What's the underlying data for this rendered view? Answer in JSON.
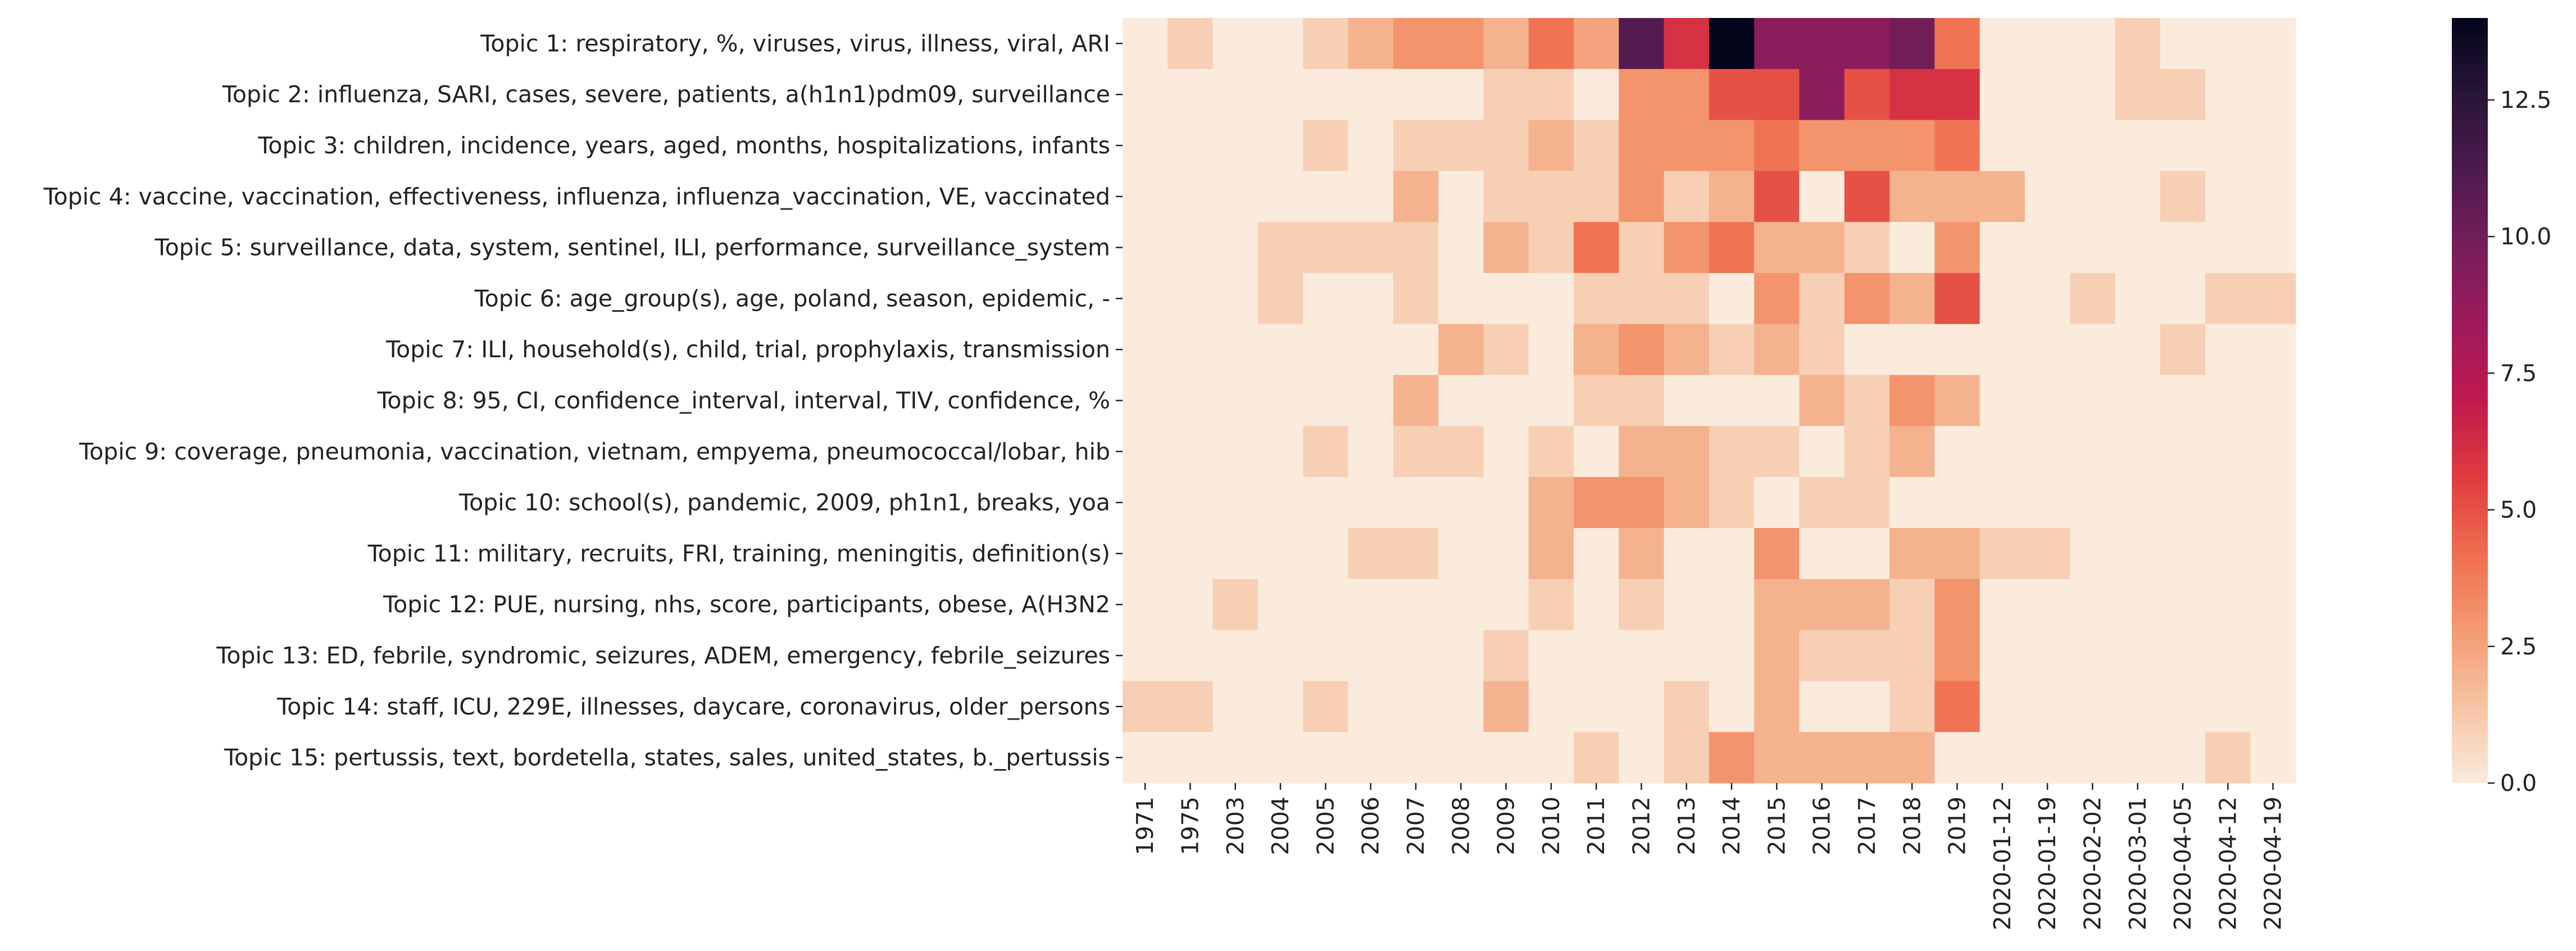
{
  "chart_data": {
    "type": "heatmap",
    "title": "",
    "xlabel": "",
    "ylabel": "",
    "x": [
      "1971",
      "1975",
      "2003",
      "2004",
      "2005",
      "2006",
      "2007",
      "2008",
      "2009",
      "2010",
      "2011",
      "2012",
      "2013",
      "2014",
      "2015",
      "2016",
      "2017",
      "2018",
      "2019",
      "2020-01-12",
      "2020-01-19",
      "2020-02-02",
      "2020-03-01",
      "2020-04-05",
      "2020-04-12",
      "2020-04-19"
    ],
    "y": [
      "Topic 1: respiratory, %, viruses, virus, illness, viral, ARI",
      "Topic 2: influenza, SARI, cases, severe, patients, a(h1n1)pdm09, surveillance",
      "Topic 3: children, incidence, years, aged, months, hospitalizations, infants",
      "Topic 4: vaccine, vaccination, effectiveness, influenza, influenza_vaccination, VE, vaccinated",
      "Topic 5: surveillance, data, system, sentinel, ILI, performance, surveillance_system",
      "Topic 6: age_group(s), age, poland, season, epidemic, -",
      "Topic 7: ILI, household(s), child, trial, prophylaxis, transmission",
      "Topic 8: 95, CI, confidence_interval, interval, TIV, confidence, %",
      "Topic 9: coverage, pneumonia, vaccination, vietnam, empyema, pneumococcal/lobar, hib",
      "Topic 10: school(s), pandemic, 2009, ph1n1, breaks, yoa",
      "Topic 11: military, recruits, FRI, training, meningitis, definition(s)",
      "Topic 12: PUE, nursing, nhs, score, participants, obese, A(H3N2",
      "Topic 13: ED, febrile, syndromic, seizures, ADEM, emergency, febrile_seizures",
      "Topic 14: staff, ICU, 229E, illnesses, daycare, coronavirus, older_persons",
      "Topic 15: pertussis, text, bordetella, states, sales, united_states, b._pertussis"
    ],
    "values": [
      [
        0,
        1,
        0,
        0,
        1,
        2,
        3,
        3,
        2,
        4,
        2.5,
        11,
        6,
        14,
        9,
        9,
        9,
        10,
        4,
        0,
        0,
        0,
        1,
        0,
        0,
        0
      ],
      [
        0,
        0,
        0,
        0,
        0,
        0,
        0,
        0,
        1,
        1,
        0,
        3,
        3,
        5,
        5,
        9,
        5,
        6,
        6,
        0,
        0,
        0,
        1,
        1,
        0,
        0
      ],
      [
        0,
        0,
        0,
        0,
        1,
        0,
        1,
        1,
        1,
        2,
        1,
        3,
        3,
        3,
        4,
        3,
        3,
        3,
        4,
        0,
        0,
        0,
        0,
        0,
        0,
        0
      ],
      [
        0,
        0,
        0,
        0,
        0,
        0,
        2,
        0,
        1,
        1,
        1,
        3,
        1,
        2,
        5,
        0,
        5,
        2,
        2,
        2,
        0,
        0,
        0,
        1,
        0,
        0
      ],
      [
        0,
        0,
        0,
        1,
        1,
        1,
        1,
        0,
        2,
        1,
        4,
        1,
        3,
        4,
        2,
        2,
        1,
        0,
        3,
        0,
        0,
        0,
        0,
        0,
        0,
        0
      ],
      [
        0,
        0,
        0,
        1,
        0,
        0,
        1,
        0,
        0,
        0,
        1,
        1,
        1,
        0,
        3,
        1,
        3,
        2,
        5,
        0,
        0,
        1,
        0,
        0,
        1,
        1
      ],
      [
        0,
        0,
        0,
        0,
        0,
        0,
        0,
        2,
        1,
        0,
        2,
        3,
        2,
        1,
        2,
        1,
        0,
        0,
        0,
        0,
        0,
        0,
        0,
        1,
        0,
        0
      ],
      [
        0,
        0,
        0,
        0,
        0,
        0,
        2,
        0,
        0,
        0,
        1,
        1,
        0,
        0,
        0,
        2,
        1,
        3,
        2,
        0,
        0,
        0,
        0,
        0,
        0,
        0
      ],
      [
        0,
        0,
        0,
        0,
        1,
        0,
        1,
        1,
        0,
        1,
        0,
        2,
        2,
        1,
        1,
        0,
        1,
        2,
        0,
        0,
        0,
        0,
        0,
        0,
        0,
        0
      ],
      [
        0,
        0,
        0,
        0,
        0,
        0,
        0,
        0,
        0,
        2,
        3,
        3,
        2,
        1,
        0,
        1,
        1,
        0,
        0,
        0,
        0,
        0,
        0,
        0,
        0,
        0
      ],
      [
        0,
        0,
        0,
        0,
        0,
        1,
        1,
        0,
        0,
        2,
        0,
        2,
        0,
        0,
        3,
        0,
        0,
        2,
        2,
        1,
        1,
        0,
        0,
        0,
        0,
        0
      ],
      [
        0,
        0,
        1,
        0,
        0,
        0,
        0,
        0,
        0,
        1,
        0,
        1,
        0,
        0,
        2,
        2,
        2,
        1,
        3,
        0,
        0,
        0,
        0,
        0,
        0,
        0
      ],
      [
        0,
        0,
        0,
        0,
        0,
        0,
        0,
        0,
        1,
        0,
        0,
        0,
        0,
        0,
        2,
        1,
        1,
        1,
        3,
        0,
        0,
        0,
        0,
        0,
        0,
        0
      ],
      [
        1,
        1,
        0,
        0,
        1,
        0,
        0,
        0,
        2,
        0,
        0,
        0,
        1,
        0,
        2,
        0,
        0,
        1,
        4,
        0,
        0,
        0,
        0,
        0,
        0,
        0
      ],
      [
        0,
        0,
        0,
        0,
        0,
        0,
        0,
        0,
        0,
        0,
        1,
        0,
        1,
        3,
        2,
        2,
        2,
        2,
        0,
        0,
        0,
        0,
        0,
        0,
        1,
        0
      ]
    ],
    "colormap": "rocket_r",
    "colorbar": {
      "range": [
        0,
        14
      ],
      "ticks": [
        0.0,
        2.5,
        5.0,
        7.5,
        10.0,
        12.5
      ],
      "tick_labels": [
        "0.0",
        "2.5",
        "5.0",
        "7.5",
        "10.0",
        "12.5"
      ]
    }
  }
}
